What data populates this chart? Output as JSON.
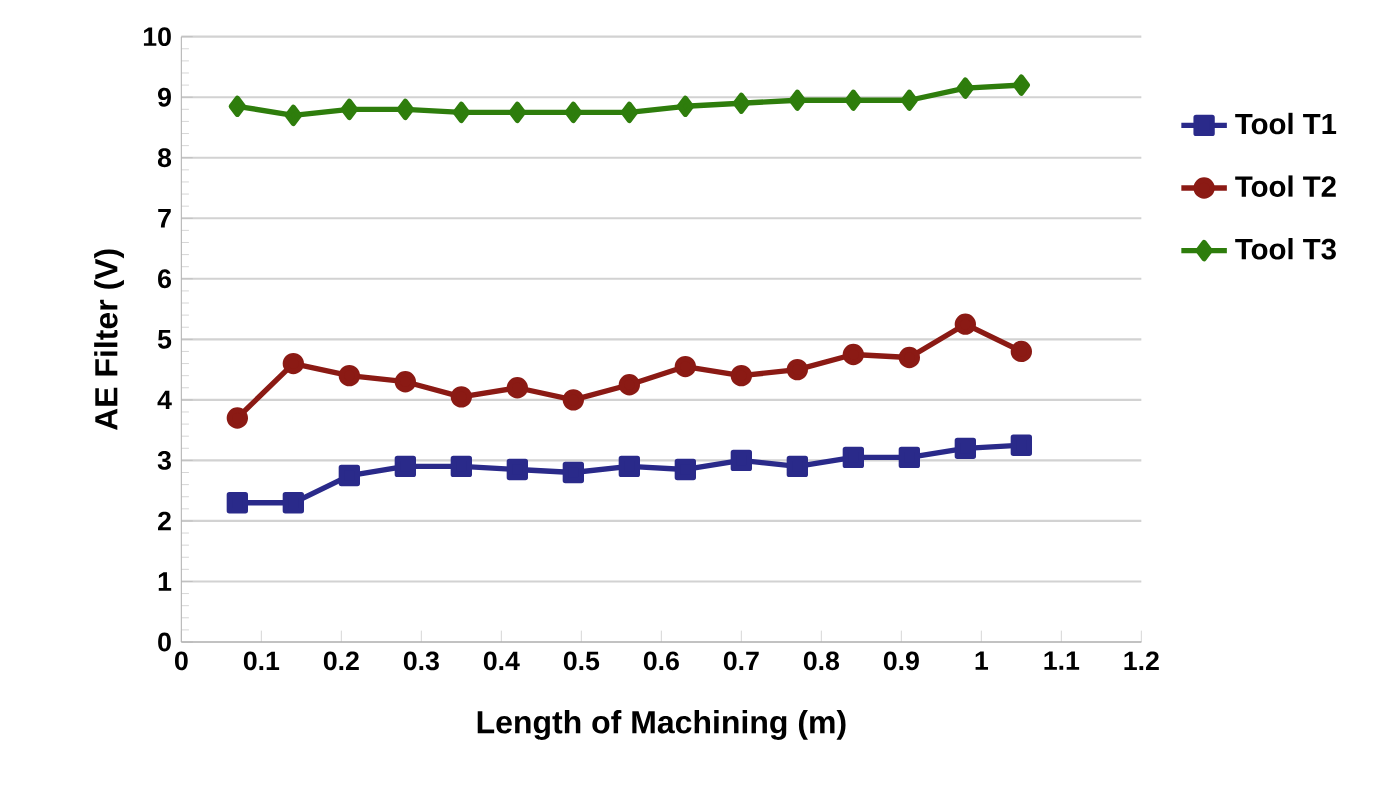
{
  "chart_data": {
    "type": "line",
    "xlabel": "Length of Machining (m)",
    "ylabel": "AE Filter (V)",
    "x": [
      0.07,
      0.14,
      0.21,
      0.28,
      0.35,
      0.42,
      0.49,
      0.56,
      0.63,
      0.7,
      0.77,
      0.84,
      0.91,
      0.98,
      1.05
    ],
    "series": [
      {
        "name": "Tool T1",
        "color": "#2a2a8a",
        "marker": "square",
        "values": [
          2.3,
          2.3,
          2.75,
          2.9,
          2.9,
          2.85,
          2.8,
          2.9,
          2.85,
          3.0,
          2.9,
          3.05,
          3.05,
          3.2,
          3.25
        ]
      },
      {
        "name": "Tool T2",
        "color": "#8b1a14",
        "marker": "circle",
        "values": [
          3.7,
          4.6,
          4.4,
          4.3,
          4.05,
          4.2,
          4.0,
          4.25,
          4.55,
          4.4,
          4.5,
          4.75,
          4.7,
          5.25,
          4.8
        ]
      },
      {
        "name": "Tool T3",
        "color": "#2e7d0c",
        "marker": "diamond",
        "values": [
          8.85,
          8.7,
          8.8,
          8.8,
          8.75,
          8.75,
          8.75,
          8.75,
          8.85,
          8.9,
          8.95,
          8.95,
          8.95,
          9.15,
          9.2
        ]
      }
    ],
    "xlim": [
      0,
      1.2
    ],
    "xticks": [
      0,
      0.1,
      0.2,
      0.3,
      0.4,
      0.5,
      0.6,
      0.7,
      0.8,
      0.9,
      1,
      1.1,
      1.2
    ],
    "ylim": [
      0,
      10
    ],
    "yticks": [
      0,
      1,
      2,
      3,
      4,
      5,
      6,
      7,
      8,
      9,
      10
    ],
    "grid": "y",
    "legend": "right",
    "line_style": "solid"
  }
}
